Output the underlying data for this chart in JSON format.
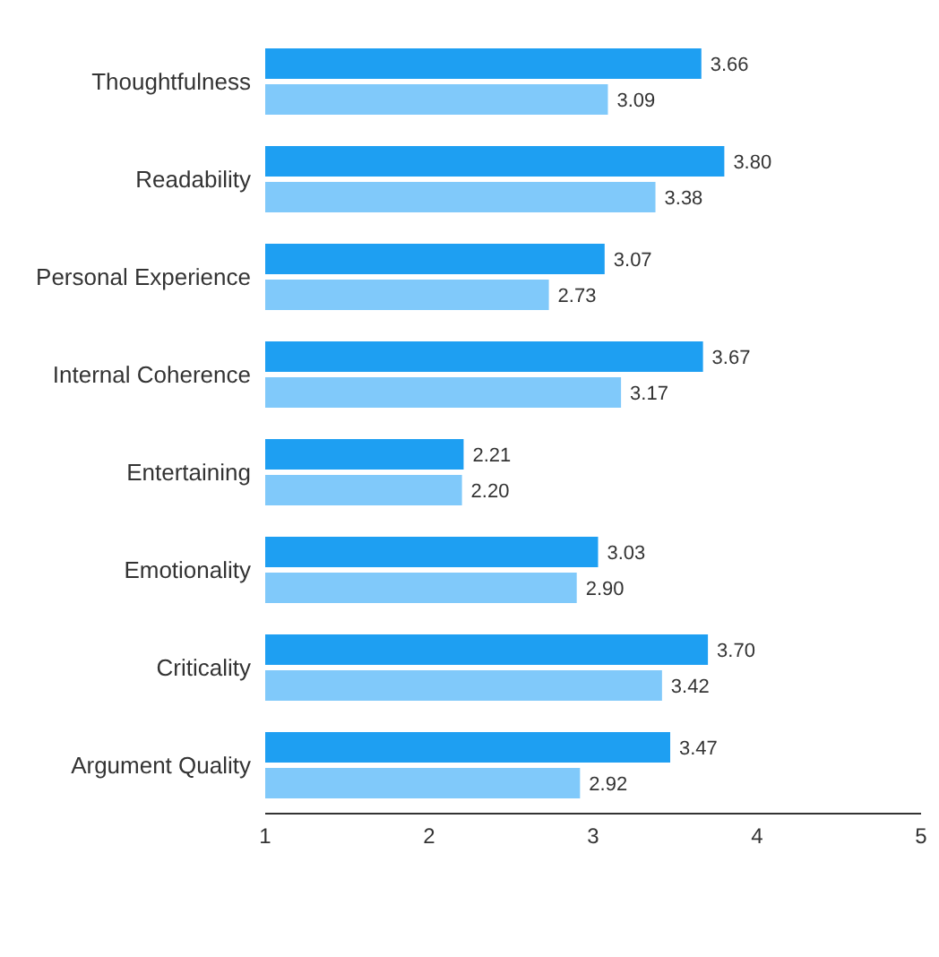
{
  "chart_data": {
    "type": "bar",
    "orientation": "horizontal",
    "categories": [
      "Thoughtfulness",
      "Readability",
      "Personal Experience",
      "Internal Coherence",
      "Entertaining",
      "Emotionality",
      "Criticality",
      "Argument Quality"
    ],
    "series": [
      {
        "color": "#1e9ff2",
        "values": [
          3.66,
          3.8,
          3.07,
          3.67,
          2.21,
          3.03,
          3.7,
          3.47
        ],
        "value_labels": [
          "3.66",
          "3.80",
          "3.07",
          "3.67",
          "2.21",
          "3.03",
          "3.70",
          "3.47"
        ]
      },
      {
        "color": "#80c9fa",
        "values": [
          3.09,
          3.38,
          2.73,
          3.17,
          2.2,
          2.9,
          3.42,
          2.92
        ],
        "value_labels": [
          "3.09",
          "3.38",
          "2.73",
          "3.17",
          "2.20",
          "2.90",
          "3.42",
          "2.92"
        ]
      }
    ],
    "xlim": [
      1,
      5
    ],
    "xticks": [
      1,
      2,
      3,
      4,
      5
    ],
    "legend": false
  }
}
